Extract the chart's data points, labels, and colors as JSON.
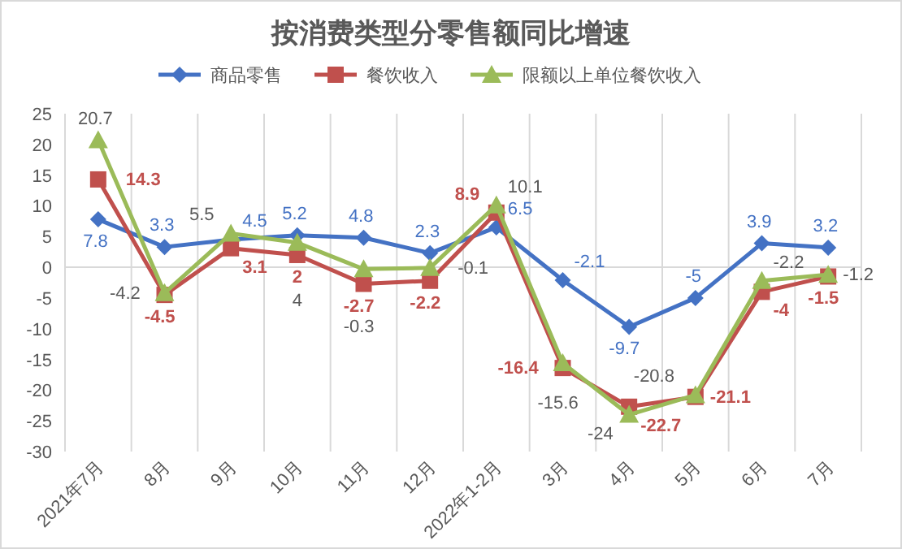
{
  "chart_data": {
    "type": "line",
    "title": "按消费类型分零售额同比增速",
    "categories": [
      "2021年7月",
      "8月",
      "9月",
      "10月",
      "11月",
      "12月",
      "2022年1-2月",
      "3月",
      "4月",
      "5月",
      "6月",
      "7月"
    ],
    "series": [
      {
        "name": "商品零售",
        "color": "#4472c4",
        "marker": "diamond",
        "values": [
          7.8,
          3.3,
          4.5,
          5.2,
          4.8,
          2.3,
          6.5,
          -2.1,
          -9.7,
          -5,
          3.9,
          3.2
        ]
      },
      {
        "name": "餐饮收入",
        "color": "#c0504d",
        "marker": "square",
        "values": [
          14.3,
          -4.5,
          3.1,
          2,
          -2.7,
          -2.2,
          8.9,
          -16.4,
          -22.7,
          -21.1,
          -4,
          -1.5
        ]
      },
      {
        "name": "限额以上单位餐饮收入",
        "color": "#9bbb59",
        "marker": "triangle",
        "values": [
          20.7,
          -4.2,
          5.5,
          4,
          -0.3,
          -0.1,
          10.1,
          -15.6,
          -24,
          -20.8,
          -2.2,
          -1.2
        ]
      }
    ],
    "ylim": [
      -30,
      25
    ],
    "yticks": [
      -30,
      -25,
      -20,
      -15,
      -10,
      -5,
      0,
      5,
      10,
      15,
      20,
      25
    ],
    "grid": true,
    "legend": "top",
    "data_labels": true
  }
}
